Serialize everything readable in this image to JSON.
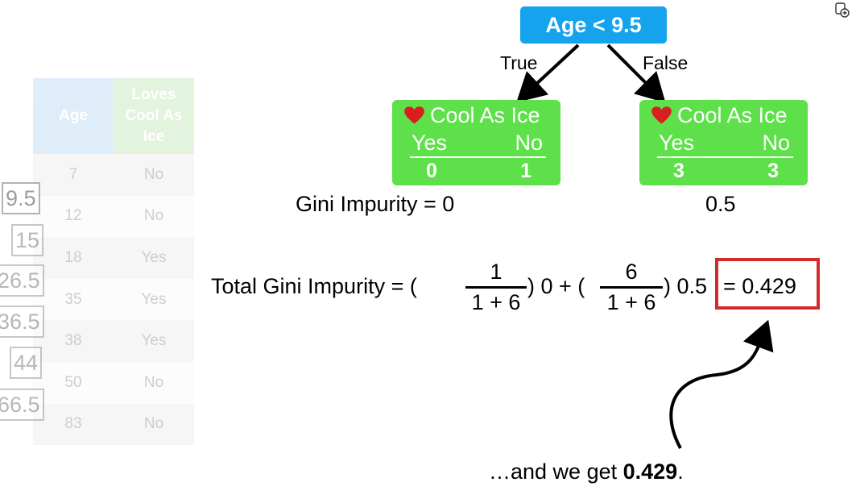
{
  "table": {
    "headers": {
      "age": "Age",
      "loves": "Loves Cool As Ice"
    },
    "rows": [
      {
        "age": "7",
        "loves": "No"
      },
      {
        "age": "12",
        "loves": "No"
      },
      {
        "age": "18",
        "loves": "Yes"
      },
      {
        "age": "35",
        "loves": "Yes"
      },
      {
        "age": "38",
        "loves": "Yes"
      },
      {
        "age": "50",
        "loves": "No"
      },
      {
        "age": "83",
        "loves": "No"
      }
    ]
  },
  "thresholds": [
    "9.5",
    "15",
    "26.5",
    "36.5",
    "44",
    "66.5"
  ],
  "tree": {
    "root_label": "Age < 9.5",
    "true_label": "True",
    "false_label": "False",
    "left_leaf": {
      "title": "Cool As Ice",
      "yes_label": "Yes",
      "no_label": "No",
      "yes_count": "0",
      "no_count": "1"
    },
    "right_leaf": {
      "title": "Cool As Ice",
      "yes_label": "Yes",
      "no_label": "No",
      "yes_count": "3",
      "no_count": "3"
    },
    "left_gini": "Gini Impurity = 0",
    "right_gini": "0.5"
  },
  "equation": {
    "prefix": "Total Gini Impurity = (",
    "frac1_num": "1",
    "frac1_den": "1 + 6",
    "mid": ") 0 + (",
    "frac2_num": "6",
    "frac2_den": "1 + 6",
    "suffix": ") 0.5",
    "result": "= 0.429"
  },
  "caption": {
    "text": "…and we get ",
    "value": "0.429",
    "end": "."
  },
  "colors": {
    "root": "#15a3ee",
    "leaf": "#5ee04a",
    "highlight": "#d42a2a"
  }
}
